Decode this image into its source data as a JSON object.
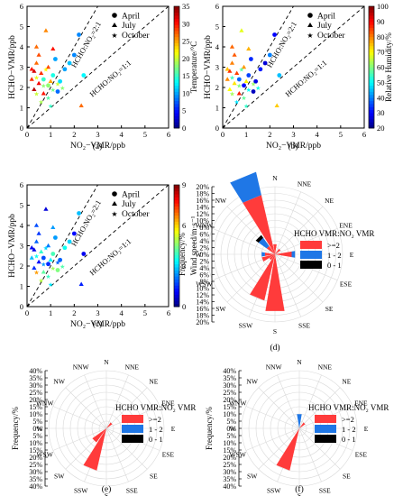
{
  "colors": {
    "axis": "#000000",
    "grid": "#d9d9d9",
    "high_ratio": "#ff3b3b",
    "mid_ratio": "#1f77e6",
    "low_ratio": "#000000"
  },
  "scatter_common": {
    "xlabel": "NO₂−VMR/ppb",
    "ylabel": "HCHO−VMR/ppb",
    "xticks": [
      "0",
      "1",
      "2",
      "3",
      "4",
      "5",
      "6"
    ],
    "yticks": [
      "0",
      "1",
      "2",
      "3",
      "4",
      "5",
      "6"
    ],
    "ref_lines": {
      "ratio2": "HCHO:NO₂=2:1",
      "ratio1": "HCHO:NO₂=1:1"
    },
    "legend": {
      "april": "April",
      "july": "July",
      "october": "October"
    }
  },
  "rose_common": {
    "ylabel": "Frequency/%",
    "directions": [
      "N",
      "NNE",
      "NE",
      "ENE",
      "E",
      "ESE",
      "SE",
      "SSE",
      "S",
      "SSW",
      "SW",
      "WSW",
      "W",
      "WNW",
      "NW",
      "NNW"
    ],
    "legend_title": "HCHO VMR:NO₂ VMR",
    "legend": [
      ">=2",
      "1 - 2",
      "0 - 1"
    ]
  },
  "panels": [
    {
      "id": "a",
      "caption": "(a)",
      "colorbar_label": "Temperature/°C",
      "colorbar_ticks": [
        "0",
        "5",
        "10",
        "15",
        "20",
        "25",
        "30",
        "35"
      ],
      "colormap": "jet"
    },
    {
      "id": "b",
      "caption": "(b)",
      "colorbar_label": "Relative Humidity/%",
      "colorbar_ticks": [
        "20",
        "30",
        "40",
        "50",
        "60",
        "70",
        "80",
        "90",
        "100"
      ],
      "colormap": "jet"
    },
    {
      "id": "c",
      "caption": "(c)",
      "colorbar_label": "Wind speed/m·s⁻¹",
      "colorbar_ticks": [
        "0",
        "3",
        "6",
        "9"
      ],
      "colormap": "jet"
    },
    {
      "id": "d",
      "caption": "(d)",
      "rticks": [
        "20%",
        "18%",
        "16%",
        "14%",
        "12%",
        "10%",
        "8%",
        "6%",
        "4%",
        "2%",
        "0%",
        "2%",
        "4%",
        "6%",
        "8%",
        "10%",
        "12%",
        "14%",
        "16%",
        "18%",
        "20%"
      ]
    },
    {
      "id": "e",
      "caption": "(e)",
      "rticks": [
        "40%",
        "35%",
        "30%",
        "25%",
        "20%",
        "15%",
        "10%",
        "5%",
        "0%",
        "5%",
        "10%",
        "15%",
        "20%",
        "25%",
        "30%",
        "35%",
        "40%"
      ]
    },
    {
      "id": "f",
      "caption": "(f)",
      "rticks": [
        "40%",
        "35%",
        "30%",
        "25%",
        "20%",
        "15%",
        "10%",
        "5%",
        "0%",
        "5%",
        "10%",
        "15%",
        "20%",
        "25%",
        "30%",
        "35%",
        "40%"
      ]
    }
  ],
  "chart_data": [
    {
      "type": "scatter",
      "panel": "a",
      "xlabel": "NO₂−VMR/ppb",
      "ylabel": "HCHO−VMR/ppb",
      "xlim": [
        0,
        6
      ],
      "ylim": [
        0,
        6
      ],
      "color_variable": "Temperature/°C",
      "color_range": [
        0,
        35
      ],
      "series": [
        {
          "name": "April",
          "marker": "circle",
          "points": [
            [
              0.9,
              2.1,
              18
            ],
            [
              1.1,
              2.6,
              14
            ],
            [
              1.4,
              2.3,
              12
            ],
            [
              1.6,
              2.9,
              10
            ],
            [
              2.0,
              3.6,
              9
            ],
            [
              2.2,
              4.6,
              9
            ],
            [
              1.3,
              1.8,
              8
            ],
            [
              0.7,
              2.4,
              15
            ],
            [
              1.8,
              3.2,
              11
            ],
            [
              2.4,
              2.6,
              13
            ],
            [
              1.2,
              3.4,
              10
            ]
          ]
        },
        {
          "name": "July",
          "marker": "triangle",
          "points": [
            [
              0.2,
              2.9,
              30
            ],
            [
              0.4,
              3.2,
              27
            ],
            [
              0.3,
              1.9,
              33
            ],
            [
              0.6,
              2.7,
              29
            ],
            [
              0.9,
              3.0,
              28
            ],
            [
              0.5,
              2.2,
              31
            ],
            [
              0.8,
              4.8,
              26
            ],
            [
              0.4,
              4.0,
              27
            ],
            [
              1.1,
              3.9,
              30
            ],
            [
              0.7,
              1.7,
              30
            ],
            [
              2.3,
              1.1,
              27
            ],
            [
              0.2,
              2.4,
              29
            ],
            [
              0.5,
              3.6,
              28
            ],
            [
              1.0,
              2.3,
              25
            ],
            [
              0.3,
              2.8,
              32
            ]
          ]
        },
        {
          "name": "October",
          "marker": "star",
          "points": [
            [
              0.4,
              2.5,
              21
            ],
            [
              0.7,
              2.1,
              18
            ],
            [
              1.1,
              1.9,
              17
            ],
            [
              0.9,
              1.5,
              16
            ],
            [
              1.3,
              2.2,
              20
            ],
            [
              0.6,
              1.3,
              19
            ],
            [
              0.8,
              2.9,
              22
            ],
            [
              1.5,
              2.0,
              18
            ],
            [
              0.4,
              1.7,
              20
            ],
            [
              1.0,
              1.1,
              15
            ]
          ]
        }
      ]
    },
    {
      "type": "scatter",
      "panel": "b",
      "xlabel": "NO₂−VMR/ppb",
      "ylabel": "HCHO−VMR/ppb",
      "xlim": [
        0,
        6
      ],
      "ylim": [
        0,
        6
      ],
      "color_variable": "Relative Humidity/%",
      "color_range": [
        20,
        100
      ],
      "series": [
        {
          "name": "April",
          "marker": "circle",
          "points": [
            [
              0.9,
              2.1,
              30
            ],
            [
              1.1,
              2.6,
              35
            ],
            [
              1.4,
              2.3,
              28
            ],
            [
              1.6,
              2.9,
              32
            ],
            [
              2.0,
              3.6,
              40
            ],
            [
              2.2,
              4.6,
              30
            ],
            [
              1.3,
              1.8,
              25
            ],
            [
              0.7,
              2.4,
              38
            ],
            [
              1.8,
              3.2,
              27
            ],
            [
              2.4,
              2.6,
              45
            ],
            [
              1.2,
              3.4,
              33
            ]
          ]
        },
        {
          "name": "July",
          "marker": "triangle",
          "points": [
            [
              0.2,
              2.9,
              75
            ],
            [
              0.4,
              3.2,
              80
            ],
            [
              0.3,
              1.9,
              70
            ],
            [
              0.6,
              2.7,
              85
            ],
            [
              0.9,
              3.0,
              78
            ],
            [
              0.5,
              2.2,
              72
            ],
            [
              0.8,
              4.8,
              68
            ],
            [
              0.4,
              4.0,
              82
            ],
            [
              1.1,
              3.9,
              76
            ],
            [
              0.7,
              1.7,
              88
            ],
            [
              2.3,
              1.1,
              74
            ],
            [
              0.2,
              2.4,
              79
            ],
            [
              0.5,
              3.6,
              83
            ],
            [
              1.0,
              2.3,
              71
            ],
            [
              0.3,
              2.8,
              86
            ]
          ]
        },
        {
          "name": "October",
          "marker": "star",
          "points": [
            [
              0.4,
              2.5,
              55
            ],
            [
              0.7,
              2.1,
              60
            ],
            [
              1.1,
              1.9,
              50
            ],
            [
              0.9,
              1.5,
              58
            ],
            [
              1.3,
              2.2,
              62
            ],
            [
              0.6,
              1.3,
              48
            ],
            [
              0.8,
              2.9,
              57
            ],
            [
              1.5,
              2.0,
              52
            ],
            [
              0.4,
              1.7,
              63
            ],
            [
              1.0,
              1.1,
              54
            ]
          ]
        }
      ]
    },
    {
      "type": "scatter",
      "panel": "c",
      "xlabel": "NO₂−VMR/ppb",
      "ylabel": "HCHO−VMR/ppb",
      "xlim": [
        0,
        6
      ],
      "ylim": [
        0,
        6
      ],
      "color_variable": "Wind speed/m·s⁻¹",
      "color_range": [
        0,
        9
      ],
      "series": [
        {
          "name": "April",
          "marker": "circle",
          "points": [
            [
              0.9,
              2.1,
              1.5
            ],
            [
              1.1,
              2.6,
              4.0
            ],
            [
              1.4,
              2.3,
              2.0
            ],
            [
              1.6,
              2.9,
              3.5
            ],
            [
              2.0,
              3.6,
              1.2
            ],
            [
              2.2,
              4.6,
              2.8
            ],
            [
              1.3,
              1.8,
              4.5
            ],
            [
              0.7,
              2.4,
              1.8
            ],
            [
              1.8,
              3.2,
              3.0
            ],
            [
              2.4,
              2.6,
              1.0
            ],
            [
              1.2,
              3.4,
              2.5
            ]
          ]
        },
        {
          "name": "July",
          "marker": "triangle",
          "points": [
            [
              0.2,
              2.9,
              1.0
            ],
            [
              0.4,
              3.2,
              2.0
            ],
            [
              0.3,
              1.9,
              1.5
            ],
            [
              0.6,
              2.7,
              3.8
            ],
            [
              0.9,
              3.0,
              2.2
            ],
            [
              0.5,
              2.2,
              1.2
            ],
            [
              0.8,
              4.8,
              0.8
            ],
            [
              0.4,
              4.0,
              1.8
            ],
            [
              1.1,
              3.9,
              2.5
            ],
            [
              0.7,
              1.7,
              4.2
            ],
            [
              2.3,
              1.1,
              1.4
            ],
            [
              0.2,
              2.4,
              2.8
            ],
            [
              0.5,
              3.6,
              1.6
            ],
            [
              1.0,
              2.3,
              3.3
            ],
            [
              0.3,
              2.8,
              0.9
            ]
          ]
        },
        {
          "name": "October",
          "marker": "star",
          "points": [
            [
              0.4,
              2.5,
              3.5
            ],
            [
              0.7,
              2.1,
              2.5
            ],
            [
              1.1,
              1.9,
              4.8
            ],
            [
              0.9,
              1.5,
              3.9
            ],
            [
              1.3,
              2.2,
              2.0
            ],
            [
              0.6,
              1.3,
              5.0
            ],
            [
              0.8,
              2.9,
              3.0
            ],
            [
              1.5,
              2.0,
              4.1
            ],
            [
              0.4,
              1.7,
              6.5
            ],
            [
              1.0,
              1.1,
              3.2
            ]
          ]
        }
      ]
    },
    {
      "type": "wind_rose",
      "panel": "d",
      "rlim": [
        0,
        20
      ],
      "unit": "%",
      "categories": [
        "N",
        "NNE",
        "NE",
        "ENE",
        "E",
        "ESE",
        "SE",
        "SSE",
        "S",
        "SSW",
        "SW",
        "WSW",
        "W",
        "WNW",
        "NW",
        "NNW"
      ],
      "series": [
        {
          "name": ">=2",
          "values": [
            3,
            0,
            2,
            0,
            5,
            0,
            0,
            0,
            17,
            14,
            2,
            4,
            3,
            0,
            3,
            18
          ]
        },
        {
          "name": "1 - 2",
          "values": [
            0,
            0,
            0,
            0,
            1,
            0,
            0,
            0,
            0,
            0,
            0,
            0,
            1,
            0,
            3,
            7
          ]
        },
        {
          "name": "0 - 1",
          "values": [
            0,
            0,
            0,
            0,
            0,
            0,
            0,
            0,
            0,
            0,
            0,
            0,
            0,
            0,
            1,
            0
          ]
        }
      ]
    },
    {
      "type": "wind_rose",
      "panel": "e",
      "rlim": [
        0,
        40
      ],
      "unit": "%",
      "categories": [
        "N",
        "NNE",
        "NE",
        "ENE",
        "E",
        "ESE",
        "SE",
        "SSE",
        "S",
        "SSW",
        "SW",
        "WSW",
        "W",
        "WNW",
        "NW",
        "NNW"
      ],
      "series": [
        {
          "name": ">=2",
          "values": [
            0,
            0,
            5,
            0,
            0,
            0,
            0,
            0,
            0,
            30,
            12,
            0,
            0,
            0,
            0,
            0
          ]
        },
        {
          "name": "1 - 2",
          "values": [
            0,
            0,
            0,
            0,
            0,
            0,
            0,
            0,
            0,
            0,
            0,
            0,
            0,
            0,
            0,
            0
          ]
        },
        {
          "name": "0 - 1",
          "values": [
            0,
            0,
            0,
            0,
            0,
            0,
            0,
            0,
            0,
            0,
            0,
            0,
            0,
            0,
            0,
            0
          ]
        }
      ]
    },
    {
      "type": "wind_rose",
      "panel": "f",
      "rlim": [
        0,
        40
      ],
      "unit": "%",
      "categories": [
        "N",
        "NNE",
        "NE",
        "ENE",
        "E",
        "ESE",
        "SE",
        "SSE",
        "S",
        "SSW",
        "SW",
        "WSW",
        "W",
        "WNW",
        "NW",
        "NNW"
      ],
      "series": [
        {
          "name": ">=2",
          "values": [
            0,
            0,
            5,
            0,
            0,
            0,
            0,
            0,
            0,
            30,
            0,
            0,
            0,
            0,
            0,
            0
          ]
        },
        {
          "name": "1 - 2",
          "values": [
            10,
            0,
            0,
            0,
            0,
            0,
            0,
            0,
            0,
            0,
            0,
            0,
            0,
            0,
            0,
            0
          ]
        },
        {
          "name": "0 - 1",
          "values": [
            0,
            0,
            0,
            0,
            0,
            0,
            0,
            0,
            0,
            0,
            0,
            0,
            0,
            0,
            0,
            0
          ]
        }
      ]
    }
  ]
}
